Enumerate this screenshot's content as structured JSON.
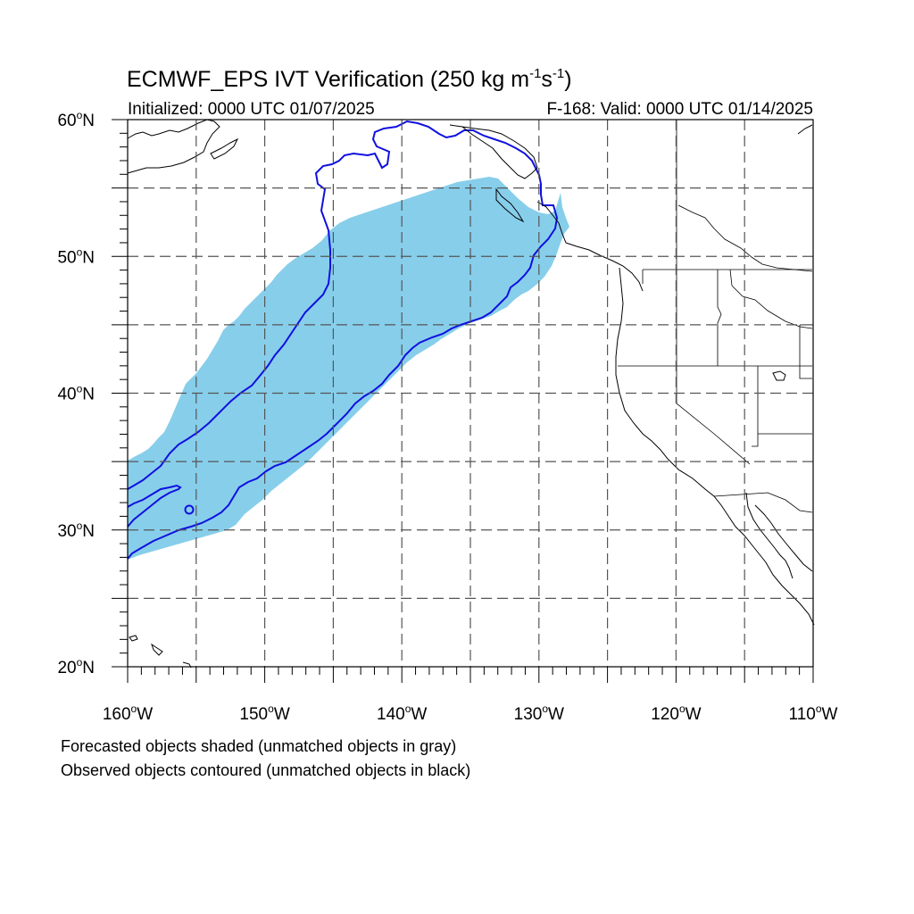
{
  "title": {
    "main_prefix": "ECMWF_EPS IVT Verification (250 kg m",
    "sup1": "-1",
    "mid": "s",
    "sup2": "-1",
    "suffix": ")"
  },
  "subtitle_left": "Initialized: 0000 UTC 01/07/2025",
  "subtitle_right": "F-168: Valid: 0000 UTC 01/14/2025",
  "lat_ticks": [
    {
      "num": "60",
      "suffix": "N",
      "value": 60
    },
    {
      "num": "50",
      "suffix": "N",
      "value": 50
    },
    {
      "num": "40",
      "suffix": "N",
      "value": 40
    },
    {
      "num": "30",
      "suffix": "N",
      "value": 30
    },
    {
      "num": "20",
      "suffix": "N",
      "value": 20
    }
  ],
  "lon_ticks": [
    {
      "num": "160",
      "suffix": "W",
      "value": -160
    },
    {
      "num": "150",
      "suffix": "W",
      "value": -150
    },
    {
      "num": "140",
      "suffix": "W",
      "value": -140
    },
    {
      "num": "130",
      "suffix": "W",
      "value": -130
    },
    {
      "num": "120",
      "suffix": "W",
      "value": -120
    },
    {
      "num": "110",
      "suffix": "W",
      "value": -110
    }
  ],
  "extent": {
    "lon_min": -160,
    "lon_max": -110,
    "lat_min": 20,
    "lat_max": 60
  },
  "gridlines": {
    "lon": [
      -155,
      -150,
      -145,
      -140,
      -135,
      -130,
      -125,
      -120,
      -115
    ],
    "lat": [
      25,
      30,
      35,
      40,
      45,
      50,
      55
    ]
  },
  "caption_line1": "Forecasted objects shaded (unmatched objects in gray)",
  "caption_line2": "Observed objects contoured (unmatched objects in black)",
  "colors": {
    "forecast_fill": "#87ceeb",
    "observed_contour": "#1010e0",
    "grid": "#555555",
    "coastline": "#000000"
  }
}
